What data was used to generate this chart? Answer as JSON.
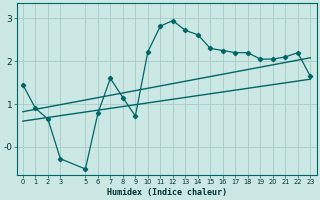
{
  "xlabel": "Humidex (Indice chaleur)",
  "bg_color": "#cce8e5",
  "grid_color": "#aad0cc",
  "line_color": "#006666",
  "xlim": [
    -0.5,
    23.5
  ],
  "ylim": [
    -0.65,
    3.35
  ],
  "xticks": [
    0,
    1,
    2,
    3,
    5,
    6,
    7,
    8,
    9,
    10,
    11,
    12,
    13,
    14,
    15,
    16,
    17,
    18,
    19,
    20,
    21,
    22,
    23
  ],
  "yticks": [
    0.0,
    1.0,
    2.0,
    3.0
  ],
  "ytick_labels": [
    "-0",
    "1",
    "2",
    "3"
  ],
  "line1_x": [
    0,
    1,
    2,
    3,
    5,
    6,
    7,
    8,
    9,
    10,
    11,
    12,
    13,
    14,
    15,
    16,
    17,
    18,
    19,
    20,
    21,
    22,
    23
  ],
  "line1_y": [
    1.45,
    0.9,
    0.65,
    -0.28,
    -0.52,
    0.78,
    1.6,
    1.15,
    0.72,
    2.22,
    2.82,
    2.95,
    2.72,
    2.62,
    2.3,
    2.25,
    2.2,
    2.2,
    2.05,
    2.05,
    2.1,
    2.2,
    1.65
  ],
  "line2_x": [
    0,
    23
  ],
  "line2_y": [
    0.82,
    2.08
  ],
  "line3_x": [
    0,
    23
  ],
  "line3_y": [
    0.6,
    1.58
  ]
}
